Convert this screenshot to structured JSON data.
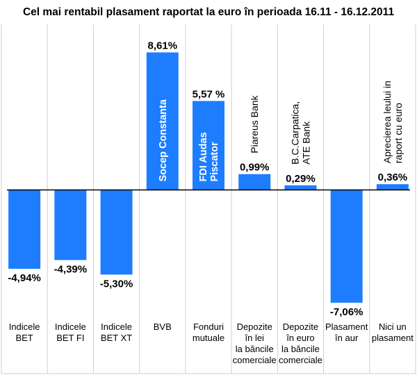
{
  "chart_data": {
    "type": "bar",
    "title": "Cel mai rentabil plasament raportat la euro în perioada 16.11 - 16.12.2011",
    "ylim": [
      -8,
      9
    ],
    "grid": false,
    "legend": "none",
    "bar_color": "#1e7dff",
    "categories": [
      [
        "Indicele",
        "BET"
      ],
      [
        "Indicele",
        "BET FI"
      ],
      [
        "Indicele",
        "BET XT"
      ],
      [
        "BVB"
      ],
      [
        "Fonduri",
        "mutuale"
      ],
      [
        "Depozite",
        "în lei",
        "la băncile",
        "comerciale"
      ],
      [
        "Depozite",
        "în euro",
        "la băncile",
        "comerciale"
      ],
      [
        "Plasament",
        "în aur"
      ],
      [
        "Nici un",
        "plasament"
      ]
    ],
    "values": [
      -4.94,
      -4.39,
      -5.3,
      8.61,
      5.57,
      0.99,
      0.29,
      -7.06,
      0.36
    ],
    "value_labels": [
      "-4,94%",
      "-4,39%",
      "-5,30%",
      "8,61%",
      "5,57 %",
      "0,99%",
      "0,29%",
      "-7,06%",
      "0,36%"
    ],
    "annotations": [
      {
        "index": 3,
        "lines": [
          "Socep Constanta"
        ],
        "inside": true
      },
      {
        "index": 4,
        "lines": [
          "FDI Audas",
          "Piscator"
        ],
        "inside": true
      },
      {
        "index": 5,
        "lines": [
          "Piareus Bank"
        ],
        "inside": false
      },
      {
        "index": 6,
        "lines": [
          "B.C.Carpatica,",
          "ATE Bank"
        ],
        "inside": false
      },
      {
        "index": 8,
        "lines": [
          "Aprecierea leului in",
          "raport cu euro"
        ],
        "inside": false
      }
    ]
  }
}
